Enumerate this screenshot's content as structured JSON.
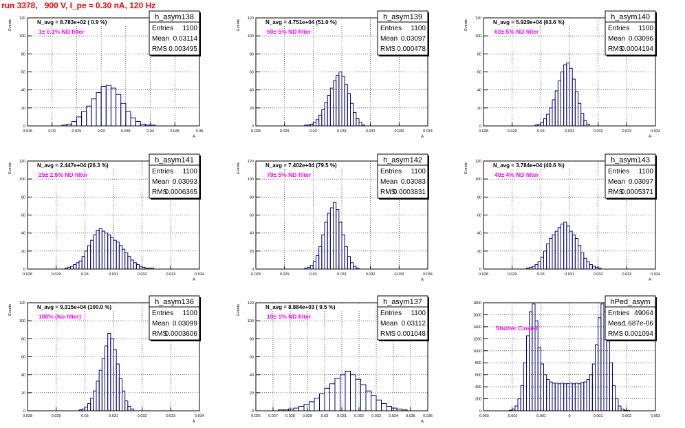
{
  "run_title": "run 3378,   900 V, I_pe ≈ 0.30 nA, 120 Hz",
  "colors": {
    "histogram": "#00007f",
    "annotation": "#ff00ff",
    "title": "#ff0000",
    "grid": "#000000"
  },
  "chart_data": [
    {
      "type": "histogram",
      "name": "h_asym138",
      "title": "N_avg = 8.783e+02 ( 0.9 %)",
      "filter_label": "1± 0.1% ND filter",
      "stats": [
        [
          "Entries",
          "1100"
        ],
        [
          "Mean",
          "0.03114"
        ],
        [
          "RMS",
          "0.003495"
        ]
      ],
      "ylabel": "Events",
      "xlabel": "A",
      "xlim": [
        0.015,
        0.05
      ],
      "ylim": [
        0,
        120
      ],
      "xticks": [
        0.015,
        0.02,
        0.025,
        0.03,
        0.035,
        0.04,
        0.045,
        0.05
      ],
      "xtick_labels": [
        "0.015",
        "0.02",
        "0.025",
        "0.03",
        "0.035",
        "0.04",
        "0.045",
        "0.05"
      ],
      "yticks": [
        0,
        20,
        40,
        60,
        80,
        100,
        120
      ],
      "x": [
        0.0225,
        0.0235,
        0.0245,
        0.0255,
        0.0265,
        0.0275,
        0.0285,
        0.0295,
        0.0305,
        0.0315,
        0.0325,
        0.0335,
        0.0345,
        0.0355,
        0.0365,
        0.0375,
        0.0385,
        0.0395,
        0.0405
      ],
      "values": [
        1,
        2,
        5,
        10,
        16,
        22,
        30,
        37,
        44,
        45,
        42,
        35,
        25,
        16,
        9,
        5,
        2,
        1,
        1
      ]
    },
    {
      "type": "histogram",
      "name": "h_asym139",
      "title": "N_avg = 4.751e+04 (51.0 %)",
      "filter_label": "50± 5% ND filter",
      "stats": [
        [
          "Entries",
          "1100"
        ],
        [
          "Mean",
          "0.03097"
        ],
        [
          "RMS",
          "0.000478"
        ]
      ],
      "ylabel": "Events",
      "xlabel": "A",
      "xlim": [
        0.028,
        0.034
      ],
      "ylim": [
        0,
        120
      ],
      "xticks": [
        0.028,
        0.029,
        0.03,
        0.031,
        0.032,
        0.033,
        0.034
      ],
      "xtick_labels": [
        "0.028",
        "0.029",
        "0.03",
        "0.031",
        "0.032",
        "0.033",
        "0.034"
      ],
      "yticks": [
        0,
        20,
        40,
        60,
        80,
        100,
        120
      ],
      "x": [
        0.02975,
        0.02985,
        0.02995,
        0.03005,
        0.03015,
        0.03025,
        0.03035,
        0.03045,
        0.03055,
        0.03065,
        0.03075,
        0.03085,
        0.03095,
        0.03105,
        0.03115,
        0.03125,
        0.03135,
        0.03145,
        0.03155,
        0.03165,
        0.03175
      ],
      "values": [
        1,
        1,
        2,
        4,
        7,
        12,
        18,
        26,
        34,
        42,
        50,
        56,
        60,
        55,
        46,
        36,
        25,
        15,
        8,
        4,
        1
      ]
    },
    {
      "type": "histogram",
      "name": "h_asym140",
      "title": "N_avg = 5.929e+04 (63.6 %)",
      "filter_label": "63± 5% ND filter",
      "stats": [
        [
          "Entries",
          "1100"
        ],
        [
          "Mean",
          "0.03096"
        ],
        [
          "RMS",
          "0.0004194"
        ]
      ],
      "ylabel": "Events",
      "xlabel": "A",
      "xlim": [
        0.028,
        0.034
      ],
      "ylim": [
        0,
        120
      ],
      "xticks": [
        0.028,
        0.029,
        0.03,
        0.031,
        0.032,
        0.033,
        0.034
      ],
      "xtick_labels": [
        "0.028",
        "0.029",
        "0.03",
        "0.031",
        "0.032",
        "0.033",
        "0.034"
      ],
      "yticks": [
        0,
        20,
        40,
        60,
        80,
        100,
        120
      ],
      "x": [
        0.02985,
        0.02995,
        0.03005,
        0.03015,
        0.03025,
        0.03035,
        0.03045,
        0.03055,
        0.03065,
        0.03075,
        0.03085,
        0.03095,
        0.03105,
        0.03115,
        0.03125,
        0.03135,
        0.03145,
        0.03155,
        0.03165
      ],
      "values": [
        1,
        2,
        4,
        8,
        13,
        20,
        29,
        39,
        50,
        60,
        68,
        70,
        64,
        52,
        38,
        25,
        14,
        6,
        2
      ]
    },
    {
      "type": "histogram",
      "name": "h_asym141",
      "title": "N_avg = 2.447e+04 (26.3 %)",
      "filter_label": "25± 2.5% ND filter",
      "stats": [
        [
          "Entries",
          "1100"
        ],
        [
          "Mean",
          "0.03093"
        ],
        [
          "RMS",
          "0.0006365"
        ]
      ],
      "ylabel": "Events",
      "xlabel": "A",
      "xlim": [
        0.028,
        0.034
      ],
      "ylim": [
        0,
        120
      ],
      "xticks": [
        0.028,
        0.029,
        0.03,
        0.031,
        0.032,
        0.033,
        0.034
      ],
      "xtick_labels": [
        "0.028",
        "0.029",
        "0.03",
        "0.031",
        "0.032",
        "0.033",
        "0.034"
      ],
      "yticks": [
        0,
        20,
        40,
        60,
        80,
        100,
        120
      ],
      "x": [
        0.02935,
        0.02945,
        0.02955,
        0.02965,
        0.02975,
        0.02985,
        0.02995,
        0.03005,
        0.03015,
        0.03025,
        0.03035,
        0.03045,
        0.03055,
        0.03065,
        0.03075,
        0.03085,
        0.03095,
        0.03105,
        0.03115,
        0.03125,
        0.03135,
        0.03145,
        0.03155,
        0.03165,
        0.03175,
        0.03185,
        0.03195,
        0.03205,
        0.03215,
        0.03225,
        0.03235
      ],
      "values": [
        1,
        2,
        3,
        5,
        7,
        9,
        14,
        20,
        26,
        32,
        38,
        43,
        45,
        42,
        40,
        38,
        35,
        32,
        30,
        26,
        22,
        18,
        14,
        10,
        7,
        5,
        3,
        2,
        1,
        1,
        1
      ]
    },
    {
      "type": "histogram",
      "name": "h_asym142",
      "title": "N_avg = 7.402e+04 (79.5 %)",
      "filter_label": "79± 5% ND filter",
      "stats": [
        [
          "Entries",
          "1100"
        ],
        [
          "Mean",
          "0.03083"
        ],
        [
          "RMS",
          "0.0003831"
        ]
      ],
      "ylabel": "Events",
      "xlabel": "A",
      "xlim": [
        0.028,
        0.034
      ],
      "ylim": [
        0,
        120
      ],
      "xticks": [
        0.028,
        0.029,
        0.03,
        0.031,
        0.032,
        0.033,
        0.034
      ],
      "xtick_labels": [
        "0.028",
        "0.029",
        "0.03",
        "0.031",
        "0.032",
        "0.033",
        "0.034"
      ],
      "yticks": [
        0,
        20,
        40,
        60,
        80,
        100,
        120
      ],
      "x": [
        0.02975,
        0.02985,
        0.02995,
        0.03005,
        0.03015,
        0.03025,
        0.03035,
        0.03045,
        0.03055,
        0.03065,
        0.03075,
        0.03085,
        0.03095,
        0.03105,
        0.03115,
        0.03125,
        0.03135,
        0.03145,
        0.03155
      ],
      "values": [
        1,
        2,
        4,
        8,
        15,
        25,
        38,
        52,
        62,
        68,
        74,
        66,
        52,
        38,
        25,
        14,
        7,
        3,
        1
      ]
    },
    {
      "type": "histogram",
      "name": "h_asym143",
      "title": "N_avg = 3.784e+04 (40.6 %)",
      "filter_label": "40± 4% ND filter",
      "stats": [
        [
          "Entries",
          "1100"
        ],
        [
          "Mean",
          "0.03097"
        ],
        [
          "RMS",
          "0.0005371"
        ]
      ],
      "ylabel": "Events",
      "xlabel": "A",
      "xlim": [
        0.028,
        0.034
      ],
      "ylim": [
        0,
        120
      ],
      "xticks": [
        0.028,
        0.029,
        0.03,
        0.031,
        0.032,
        0.033,
        0.034
      ],
      "xtick_labels": [
        "0.028",
        "0.029",
        "0.03",
        "0.031",
        "0.032",
        "0.033",
        "0.034"
      ],
      "yticks": [
        0,
        20,
        40,
        60,
        80,
        100,
        120
      ],
      "x": [
        0.02955,
        0.02965,
        0.02975,
        0.02985,
        0.02995,
        0.03005,
        0.03015,
        0.03025,
        0.03035,
        0.03045,
        0.03055,
        0.03065,
        0.03075,
        0.03085,
        0.03095,
        0.03105,
        0.03115,
        0.03125,
        0.03135,
        0.03145,
        0.03155,
        0.03165,
        0.03175,
        0.03185,
        0.03195,
        0.03205
      ],
      "values": [
        1,
        2,
        3,
        5,
        8,
        13,
        20,
        28,
        34,
        38,
        42,
        46,
        50,
        52,
        48,
        42,
        38,
        34,
        26,
        18,
        12,
        8,
        5,
        3,
        2,
        1
      ]
    },
    {
      "type": "histogram",
      "name": "h_asym136",
      "title": "N_avg = 9.315e+04 (100.0 %)",
      "filter_label": "100% (No filter)",
      "stats": [
        [
          "Entries",
          "1100"
        ],
        [
          "Mean",
          "0.03099"
        ],
        [
          "RMS",
          "0.0003606"
        ]
      ],
      "ylabel": "Events",
      "xlabel": "A",
      "xlim": [
        0.028,
        0.034
      ],
      "ylim": [
        0,
        120
      ],
      "xticks": [
        0.028,
        0.029,
        0.03,
        0.031,
        0.032,
        0.033,
        0.034
      ],
      "xtick_labels": [
        "0.028",
        "0.029",
        "0.03",
        "0.031",
        "0.032",
        "0.033",
        "0.034"
      ],
      "yticks": [
        0,
        20,
        40,
        60,
        80,
        100,
        120
      ],
      "x": [
        0.02985,
        0.02995,
        0.03005,
        0.03015,
        0.03025,
        0.03035,
        0.03045,
        0.03055,
        0.03065,
        0.03075,
        0.03085,
        0.03095,
        0.03105,
        0.03115,
        0.03125,
        0.03135,
        0.03145,
        0.03155,
        0.03165
      ],
      "values": [
        1,
        2,
        4,
        8,
        14,
        22,
        33,
        45,
        58,
        72,
        86,
        80,
        68,
        52,
        36,
        22,
        11,
        5,
        2
      ]
    },
    {
      "type": "histogram",
      "name": "h_asym137",
      "title": "N_avg = 8.884e+03 ( 9.5 %)",
      "filter_label": "10± 1% ND filter",
      "stats": [
        [
          "Entries",
          "1100"
        ],
        [
          "Mean",
          "0.03112"
        ],
        [
          "RMS",
          "0.001048"
        ]
      ],
      "ylabel": "Events",
      "xlabel": "A",
      "xlim": [
        0.026,
        0.036
      ],
      "ylim": [
        0,
        120
      ],
      "xticks": [
        0.026,
        0.027,
        0.028,
        0.029,
        0.03,
        0.031,
        0.032,
        0.033,
        0.034,
        0.035,
        0.036
      ],
      "xtick_labels": [
        "0.026",
        "0.027",
        "0.028",
        "0.029",
        "0.03",
        "0.031",
        "0.032",
        "0.033",
        "0.034",
        "0.035",
        "0.036"
      ],
      "yticks": [
        0,
        20,
        40,
        60,
        80,
        100,
        120
      ],
      "x": [
        0.02745,
        0.02775,
        0.02805,
        0.02835,
        0.02865,
        0.02895,
        0.02925,
        0.02955,
        0.02985,
        0.03015,
        0.03045,
        0.03075,
        0.03105,
        0.03135,
        0.03165,
        0.03195,
        0.03225,
        0.03255,
        0.03285,
        0.03315,
        0.03345,
        0.03375,
        0.03405,
        0.03435,
        0.03465
      ],
      "values": [
        1,
        1,
        2,
        3,
        5,
        7,
        10,
        14,
        19,
        25,
        30,
        36,
        40,
        44,
        40,
        35,
        29,
        22,
        17,
        12,
        8,
        5,
        3,
        2,
        1
      ]
    },
    {
      "type": "histogram",
      "name": "hPed_asym",
      "title": "",
      "filter_label": "Shutter Closed",
      "stats": [
        [
          "Entries",
          "49064"
        ],
        [
          "Mean",
          "1.687e-06"
        ],
        [
          "RMS",
          "0.001094"
        ]
      ],
      "ylabel": "",
      "xlabel": "",
      "xlim": [
        -0.003,
        0.003
      ],
      "ylim": [
        0,
        1800
      ],
      "xticks": [
        -0.003,
        -0.002,
        -0.001,
        0,
        0.001,
        0.002,
        0.003
      ],
      "xtick_labels": [
        "-0.003",
        "-0.002",
        "-0.001",
        "0",
        "0.001",
        "0.002",
        "0.003"
      ],
      "yticks": [
        0,
        200,
        400,
        600,
        800,
        1000,
        1200,
        1400,
        1600,
        1800
      ],
      "x": [
        -0.00205,
        -0.00195,
        -0.00185,
        -0.00175,
        -0.00165,
        -0.00155,
        -0.00145,
        -0.00135,
        -0.00125,
        -0.00115,
        -0.00105,
        -0.00095,
        -0.00085,
        -0.00075,
        -0.00065,
        -0.00055,
        -0.00045,
        -0.00035,
        -0.00025,
        -0.00015,
        -5e-05,
        5e-05,
        0.00015,
        0.00025,
        0.00035,
        0.00045,
        0.00055,
        0.00065,
        0.00075,
        0.00085,
        0.00095,
        0.00105,
        0.00115,
        0.00125,
        0.00135,
        0.00145,
        0.00155,
        0.00165,
        0.00175,
        0.00185,
        0.00195,
        0.00205
      ],
      "values": [
        10,
        30,
        80,
        200,
        420,
        800,
        1250,
        1650,
        1780,
        1500,
        1050,
        780,
        600,
        520,
        480,
        460,
        460,
        450,
        460,
        450,
        455,
        460,
        450,
        460,
        450,
        470,
        480,
        520,
        600,
        780,
        1100,
        1550,
        1780,
        1650,
        1250,
        800,
        420,
        200,
        80,
        30,
        10,
        5
      ]
    }
  ]
}
